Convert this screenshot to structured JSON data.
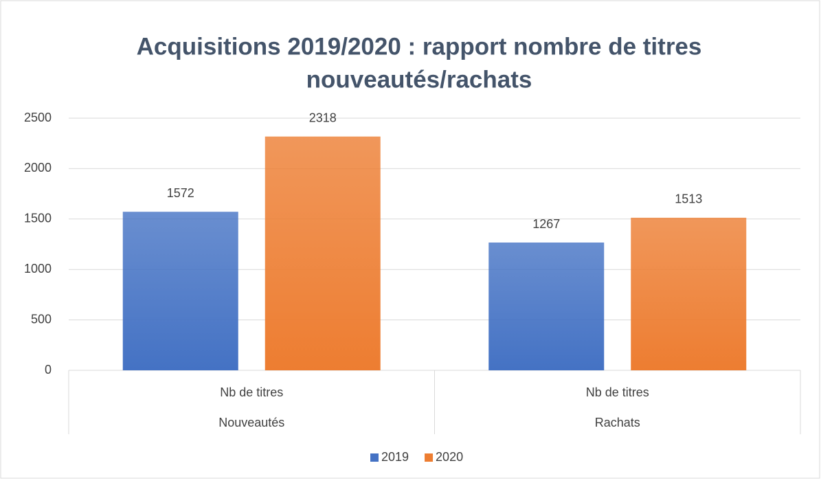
{
  "chart_data": {
    "type": "bar",
    "title": [
      "Acquisitions 2019/2020 : rapport nombre de titres",
      "nouveautés/rachats"
    ],
    "categories": [
      "Nb de titres",
      "Nb de titres"
    ],
    "groups": [
      "Nouveautés",
      "Rachats"
    ],
    "series": [
      {
        "name": "2019",
        "color": "#4472c4",
        "values": [
          1572,
          1267
        ]
      },
      {
        "name": "2020",
        "color": "#ed7d31",
        "values": [
          2318,
          1513
        ]
      }
    ],
    "ylim": [
      0,
      2500
    ],
    "yticks": [
      0,
      500,
      1000,
      1500,
      2000,
      2500
    ],
    "grid": true,
    "legend": "bottom"
  }
}
